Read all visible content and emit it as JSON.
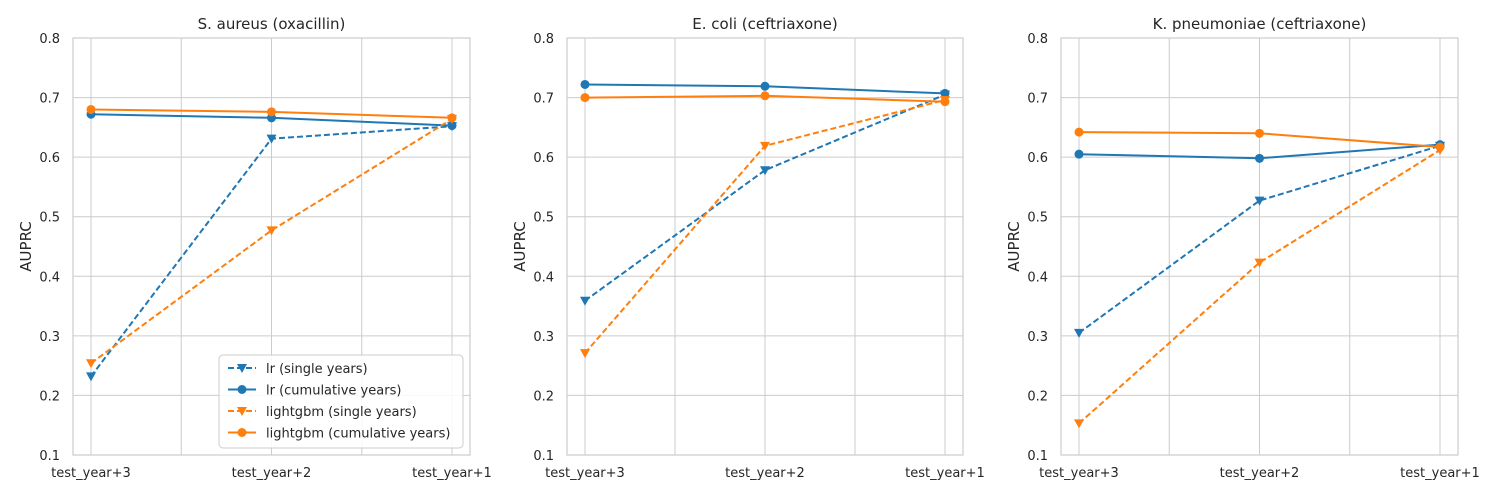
{
  "chart_data": [
    {
      "type": "line",
      "title": "S. aureus (oxacillin)",
      "xlabel": "",
      "ylabel": "AUPRC",
      "categories": [
        "test_year+3",
        "test_year+2",
        "test_year+1"
      ],
      "ylim": [
        0.1,
        0.8
      ],
      "yticks": [
        "0.1",
        "0.2",
        "0.3",
        "0.4",
        "0.5",
        "0.6",
        "0.7",
        "0.8"
      ],
      "grid": true,
      "legend": "lower-right",
      "series": [
        {
          "name": "lr (single years)",
          "values": [
            0.232,
            0.631,
            0.652
          ],
          "color": "#1f77b4",
          "style": "dashed",
          "marker": "triangle-down"
        },
        {
          "name": "lr (cumulative years)",
          "values": [
            0.672,
            0.666,
            0.653
          ],
          "color": "#1f77b4",
          "style": "solid",
          "marker": "circle"
        },
        {
          "name": "lightgbm (single years)",
          "values": [
            0.254,
            0.477,
            0.664
          ],
          "color": "#ff7f0e",
          "style": "dashed",
          "marker": "triangle-down"
        },
        {
          "name": "lightgbm (cumulative years)",
          "values": [
            0.68,
            0.676,
            0.666
          ],
          "color": "#ff7f0e",
          "style": "solid",
          "marker": "circle"
        }
      ]
    },
    {
      "type": "line",
      "title": "E. coli (ceftriaxone)",
      "xlabel": "",
      "ylabel": "AUPRC",
      "categories": [
        "test_year+3",
        "test_year+2",
        "test_year+1"
      ],
      "ylim": [
        0.1,
        0.8
      ],
      "yticks": [
        "0.1",
        "0.2",
        "0.3",
        "0.4",
        "0.5",
        "0.6",
        "0.7",
        "0.8"
      ],
      "grid": true,
      "series": [
        {
          "name": "lr (single years)",
          "values": [
            0.359,
            0.578,
            0.705
          ],
          "color": "#1f77b4",
          "style": "dashed",
          "marker": "triangle-down"
        },
        {
          "name": "lr (cumulative years)",
          "values": [
            0.722,
            0.719,
            0.707
          ],
          "color": "#1f77b4",
          "style": "solid",
          "marker": "circle"
        },
        {
          "name": "lightgbm (single years)",
          "values": [
            0.271,
            0.619,
            0.696
          ],
          "color": "#ff7f0e",
          "style": "dashed",
          "marker": "triangle-down"
        },
        {
          "name": "lightgbm (cumulative years)",
          "values": [
            0.7,
            0.703,
            0.693
          ],
          "color": "#ff7f0e",
          "style": "solid",
          "marker": "circle"
        }
      ]
    },
    {
      "type": "line",
      "title": "K. pneumoniae (ceftriaxone)",
      "xlabel": "",
      "ylabel": "AUPRC",
      "categories": [
        "test_year+3",
        "test_year+2",
        "test_year+1"
      ],
      "ylim": [
        0.1,
        0.8
      ],
      "yticks": [
        "0.1",
        "0.2",
        "0.3",
        "0.4",
        "0.5",
        "0.6",
        "0.7",
        "0.8"
      ],
      "grid": true,
      "series": [
        {
          "name": "lr (single years)",
          "values": [
            0.305,
            0.527,
            0.619
          ],
          "color": "#1f77b4",
          "style": "dashed",
          "marker": "triangle-down"
        },
        {
          "name": "lr (cumulative years)",
          "values": [
            0.605,
            0.598,
            0.621
          ],
          "color": "#1f77b4",
          "style": "solid",
          "marker": "circle"
        },
        {
          "name": "lightgbm (single years)",
          "values": [
            0.153,
            0.423,
            0.612
          ],
          "color": "#ff7f0e",
          "style": "dashed",
          "marker": "triangle-down"
        },
        {
          "name": "lightgbm (cumulative years)",
          "values": [
            0.642,
            0.64,
            0.617
          ],
          "color": "#ff7f0e",
          "style": "solid",
          "marker": "circle"
        }
      ]
    }
  ]
}
